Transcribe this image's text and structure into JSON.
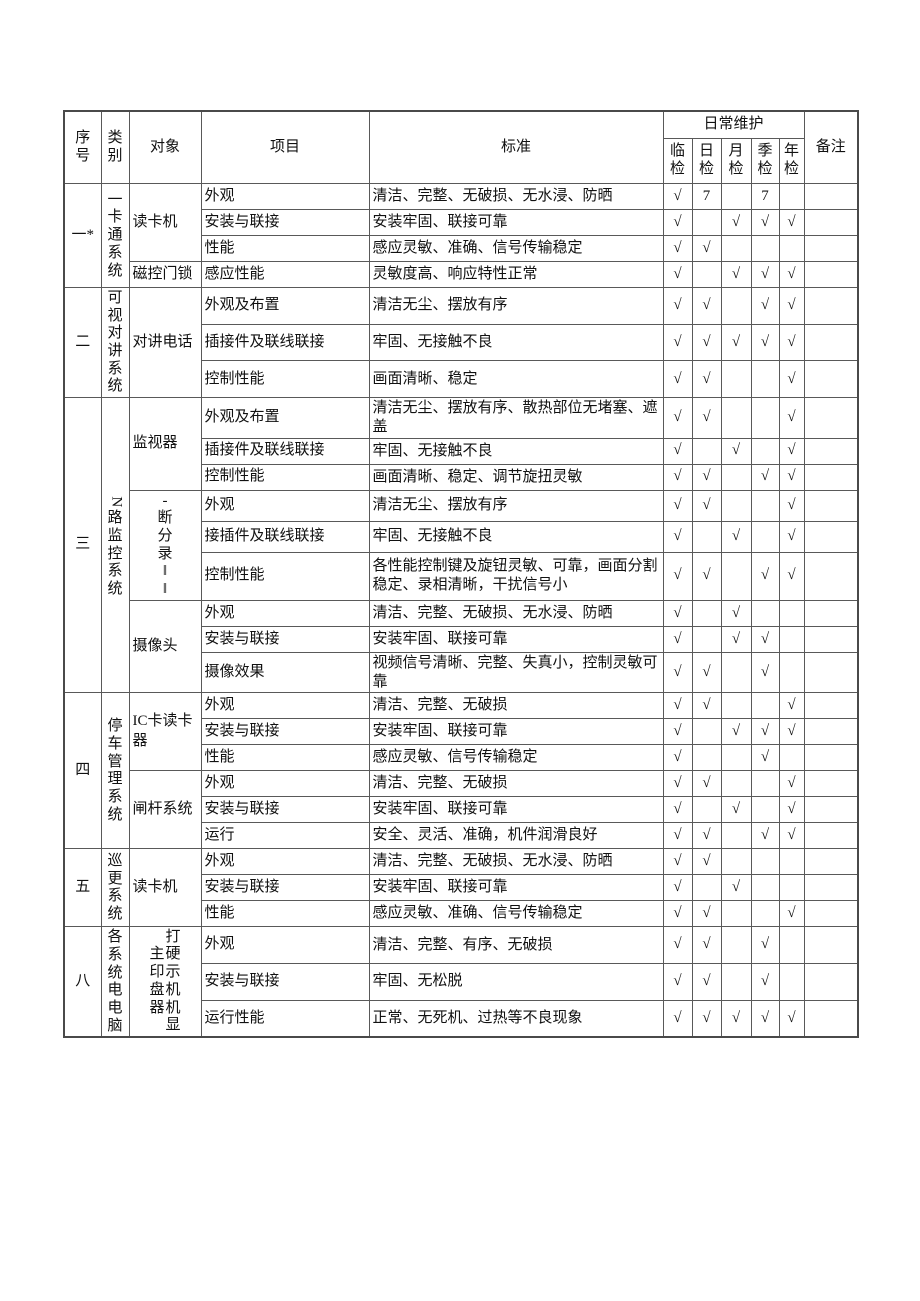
{
  "table": {
    "header": {
      "seq": "序号",
      "category": "类别",
      "object": "对象",
      "item": "项目",
      "standard": "标准",
      "maintenance": "日常维护",
      "checks": [
        "临检",
        "日检",
        "月检",
        "季检",
        "年检"
      ],
      "remark": "备注"
    },
    "mark": "√",
    "sections": [
      {
        "seq": "一*",
        "category": "一卡通系统",
        "groups": [
          {
            "object": "读卡机",
            "rows": [
              {
                "item": "外观",
                "std": "清洁、完整、无破损、无水浸、防晒",
                "checks": [
                  "√",
                  "7",
                  "",
                  "7",
                  ""
                ]
              },
              {
                "item": "安装与联接",
                "std": "安装牢固、联接可靠",
                "checks": [
                  "√",
                  "",
                  "√",
                  "√",
                  "√"
                ]
              },
              {
                "item": "性能",
                "std": "感应灵敏、准确、信号传输稳定",
                "checks": [
                  "√",
                  "√",
                  "",
                  "",
                  ""
                ]
              }
            ]
          },
          {
            "object": "磁控门锁",
            "rows": [
              {
                "item": "感应性能",
                "std": "灵敏度高、响应特性正常",
                "checks": [
                  "√",
                  "",
                  "√",
                  "√",
                  "√"
                ]
              }
            ]
          }
        ]
      },
      {
        "seq": "二",
        "category": "可视对讲系统",
        "groups": [
          {
            "object": "对讲电话",
            "rows": [
              {
                "item": "外观及布置",
                "std": "清洁无尘、摆放有序",
                "checks": [
                  "√",
                  "√",
                  "",
                  "√",
                  "√"
                ]
              },
              {
                "item": "插接件及联线联接",
                "std": "牢固、无接触不良",
                "checks": [
                  "√",
                  "√",
                  "√",
                  "√",
                  "√"
                ]
              },
              {
                "item": "控制性能",
                "std": "画面清晰、稳定",
                "checks": [
                  "√",
                  "√",
                  "",
                  "",
                  "√"
                ]
              }
            ]
          }
        ]
      },
      {
        "seq": "三",
        "category": "N路监控系统",
        "groups": [
          {
            "object": "监视器",
            "rows": [
              {
                "item": "外观及布置",
                "std": "清洁无尘、摆放有序、散热部位无堵塞、遮盖",
                "checks": [
                  "√",
                  "√",
                  "",
                  "",
                  "√"
                ]
              },
              {
                "item": "插接件及联线联接",
                "std": "牢固、无接触不良",
                "checks": [
                  "√",
                  "",
                  "√",
                  "",
                  "√"
                ]
              },
              {
                "item": "控制性能",
                "std": "画面清晰、稳定、调节旋扭灵敏",
                "checks": [
                  "√",
                  "√",
                  "",
                  "√",
                  "√"
                ]
              }
            ]
          },
          {
            "object": "-断分录‖‖",
            "vertical": true,
            "rows": [
              {
                "item": "外观",
                "std": "清洁无尘、摆放有序",
                "checks": [
                  "√",
                  "√",
                  "",
                  "",
                  "√"
                ]
              },
              {
                "item": "接插件及联线联接",
                "std": "牢固、无接触不良",
                "checks": [
                  "√",
                  "",
                  "√",
                  "",
                  "√"
                ]
              },
              {
                "item": "控制性能",
                "std": "各性能控制键及旋钮灵敏、可靠，画面分割稳定、录相清晰，干扰信号小",
                "checks": [
                  "√",
                  "√",
                  "",
                  "√",
                  "√"
                ]
              }
            ]
          },
          {
            "object": "摄像头",
            "rows": [
              {
                "item": "外观",
                "std": "清洁、完整、无破损、无水浸、防晒",
                "checks": [
                  "√",
                  "",
                  "√",
                  "",
                  ""
                ]
              },
              {
                "item": "安装与联接",
                "std": "安装牢固、联接可靠",
                "checks": [
                  "√",
                  "",
                  "√",
                  "√",
                  ""
                ]
              },
              {
                "item": "摄像效果",
                "std": "视频信号清晰、完整、失真小，控制灵敏可靠",
                "checks": [
                  "√",
                  "√",
                  "",
                  "√",
                  ""
                ]
              }
            ]
          }
        ]
      },
      {
        "seq": "四",
        "category": "停车管理系统",
        "groups": [
          {
            "object": "IC卡读卡器",
            "rows": [
              {
                "item": "外观",
                "std": "清洁、完整、无破损",
                "checks": [
                  "√",
                  "√",
                  "",
                  "",
                  "√"
                ]
              },
              {
                "item": "安装与联接",
                "std": "安装牢固、联接可靠",
                "checks": [
                  "√",
                  "",
                  "√",
                  "√",
                  "√"
                ]
              },
              {
                "item": "性能",
                "std": "感应灵敏、信号传输稳定",
                "checks": [
                  "√",
                  "",
                  "",
                  "√",
                  ""
                ]
              }
            ]
          },
          {
            "object": "闸杆系统",
            "rows": [
              {
                "item": "外观",
                "std": "清洁、完整、无破损",
                "checks": [
                  "√",
                  "√",
                  "",
                  "",
                  "√"
                ]
              },
              {
                "item": "安装与联接",
                "std": "安装牢固、联接可靠",
                "checks": [
                  "√",
                  "",
                  "√",
                  "",
                  "√"
                ]
              },
              {
                "item": "运行",
                "std": "安全、灵活、准确，机件润滑良好",
                "checks": [
                  "√",
                  "√",
                  "",
                  "√",
                  "√"
                ]
              }
            ]
          }
        ]
      },
      {
        "seq": "五",
        "category": "巡更系统",
        "groups": [
          {
            "object": "读卡机",
            "rows": [
              {
                "item": "外观",
                "std": "清洁、完整、无破损、无水浸、防晒",
                "checks": [
                  "√",
                  "√",
                  "",
                  "",
                  ""
                ]
              },
              {
                "item": "安装与联接",
                "std": "安装牢固、联接可靠",
                "checks": [
                  "√",
                  "",
                  "√",
                  "",
                  ""
                ]
              },
              {
                "item": "性能",
                "std": "感应灵敏、准确、信号传输稳定",
                "checks": [
                  "√",
                  "√",
                  "",
                  "",
                  "√"
                ]
              }
            ]
          }
        ]
      },
      {
        "seq": "八",
        "category": "各系统电电脑",
        "groups": [
          {
            "object": [
              "主印盘器",
              "打硬示机机显"
            ],
            "vertical": true,
            "rows": [
              {
                "item": "外观",
                "std": "清洁、完整、有序、无破损",
                "checks": [
                  "√",
                  "√",
                  "",
                  "√",
                  ""
                ]
              },
              {
                "item": "安装与联接",
                "std": "牢固、无松脱",
                "checks": [
                  "√",
                  "√",
                  "",
                  "√",
                  ""
                ]
              },
              {
                "item": "运行性能",
                "std": "正常、无死机、过热等不良现象",
                "checks": [
                  "√",
                  "√",
                  "√",
                  "√",
                  "√"
                ]
              }
            ]
          }
        ]
      }
    ]
  }
}
